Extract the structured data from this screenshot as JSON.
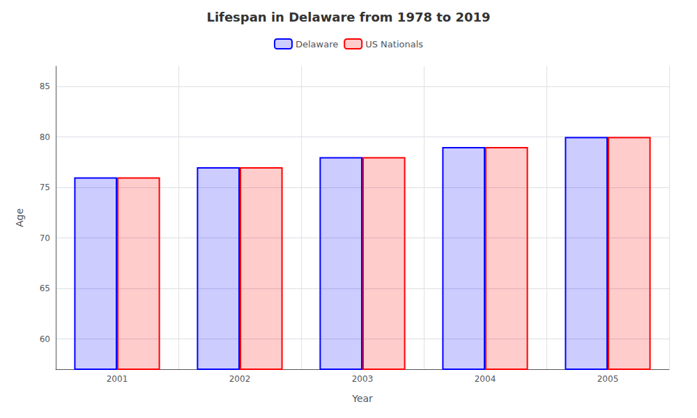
{
  "chart_data": {
    "type": "bar",
    "title": "Lifespan in Delaware from 1978 to 2019",
    "xlabel": "Year",
    "ylabel": "Age",
    "categories": [
      "2001",
      "2002",
      "2003",
      "2004",
      "2005"
    ],
    "series": [
      {
        "name": "Delaware",
        "color": "#0000ff",
        "values": [
          76.0,
          77.0,
          78.0,
          79.0,
          80.0
        ]
      },
      {
        "name": "US Nationals",
        "color": "#ff0000",
        "values": [
          76.0,
          77.0,
          78.0,
          79.0,
          80.0
        ]
      }
    ],
    "ylim": [
      57,
      87
    ],
    "yticks": [
      60,
      65,
      70,
      75,
      80,
      85
    ],
    "grid": true,
    "legend": "upper center"
  }
}
